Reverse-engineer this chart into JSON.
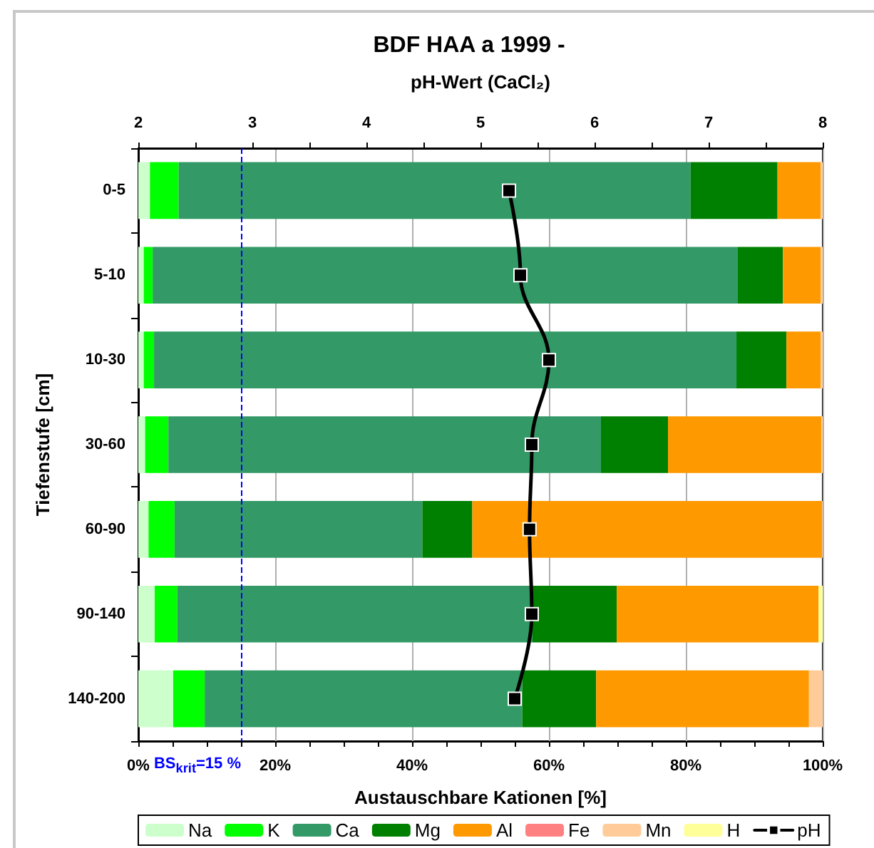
{
  "chart_data": {
    "type": "bar",
    "orientation": "horizontal",
    "stacked": true,
    "title": "BDF HAA a 1999 -",
    "xlabel": "Austauschbare Kationen [%]",
    "x2label": "pH-Wert (CaCl₂)",
    "ylabel": "Tiefenstufe [cm]",
    "categories": [
      "0-5",
      "5-10",
      "10-30",
      "30-60",
      "60-90",
      "90-140",
      "140-200"
    ],
    "series": [
      {
        "name": "Na",
        "type": "bar",
        "color": "#ccffcc",
        "values": [
          1.7,
          0.8,
          0.8,
          1.0,
          1.5,
          2.4,
          5.1
        ]
      },
      {
        "name": "K",
        "type": "bar",
        "color": "#00ff00",
        "values": [
          4.2,
          1.3,
          1.5,
          3.4,
          3.8,
          3.3,
          4.6
        ]
      },
      {
        "name": "Ca",
        "type": "bar",
        "color": "#339966",
        "values": [
          74.8,
          85.5,
          85.1,
          63.2,
          36.2,
          51.9,
          46.4
        ]
      },
      {
        "name": "Mg",
        "type": "bar",
        "color": "#008000",
        "values": [
          12.7,
          6.6,
          7.3,
          9.8,
          7.3,
          12.3,
          10.8
        ]
      },
      {
        "name": "Al",
        "type": "bar",
        "color": "#ff9900",
        "values": [
          6.3,
          5.5,
          5.0,
          22.4,
          51.1,
          29.5,
          31.1
        ]
      },
      {
        "name": "Fe",
        "type": "bar",
        "color": "#ff8080",
        "values": [
          null,
          null,
          null,
          null,
          null,
          null,
          null
        ]
      },
      {
        "name": "Mn",
        "type": "bar",
        "color": "#ffcc99",
        "values": [
          0.3,
          0.3,
          0.3,
          0.2,
          0.1,
          null,
          2.0
        ]
      },
      {
        "name": "H",
        "type": "bar",
        "color": "#ffff99",
        "values": [
          null,
          null,
          null,
          null,
          null,
          0.6,
          null
        ]
      },
      {
        "name": "pH",
        "type": "line",
        "axis": "x2",
        "color": "#000000",
        "marker": "square",
        "values": [
          5.25,
          5.35,
          5.6,
          5.45,
          5.43,
          5.45,
          5.3
        ]
      }
    ],
    "xlim": [
      0,
      100
    ],
    "xticks": [
      {
        "value": 0,
        "label": "0%"
      },
      {
        "value": 5,
        "label": null
      },
      {
        "value": 10,
        "label": null
      },
      {
        "value": 15,
        "label": null
      },
      {
        "value": 20,
        "label": "20%"
      },
      {
        "value": 25,
        "label": null
      },
      {
        "value": 30,
        "label": null
      },
      {
        "value": 35,
        "label": null
      },
      {
        "value": 40,
        "label": "40%"
      },
      {
        "value": 45,
        "label": null
      },
      {
        "value": 50,
        "label": null
      },
      {
        "value": 55,
        "label": null
      },
      {
        "value": 60,
        "label": "60%"
      },
      {
        "value": 65,
        "label": null
      },
      {
        "value": 70,
        "label": null
      },
      {
        "value": 75,
        "label": null
      },
      {
        "value": 80,
        "label": "80%"
      },
      {
        "value": 85,
        "label": null
      },
      {
        "value": 90,
        "label": null
      },
      {
        "value": 95,
        "label": null
      },
      {
        "value": 100,
        "label": "100%"
      }
    ],
    "x2lim": [
      2,
      8
    ],
    "x2ticks": [
      2,
      {
        "value": 2.5,
        "label": null
      },
      3,
      {
        "value": 3.5,
        "label": null
      },
      4,
      {
        "value": 4.5,
        "label": null
      },
      5,
      {
        "value": 5.5,
        "label": null
      },
      6,
      {
        "value": 6.5,
        "label": null
      },
      7,
      {
        "value": 7.5,
        "label": null
      },
      8
    ],
    "ref_lines": [
      {
        "axis": "x",
        "value": 15,
        "label": "BS$_{krit}$=15 %",
        "color": "#0000ff",
        "line_style": "dashed"
      }
    ],
    "grid": "x",
    "legend": "bottom"
  }
}
